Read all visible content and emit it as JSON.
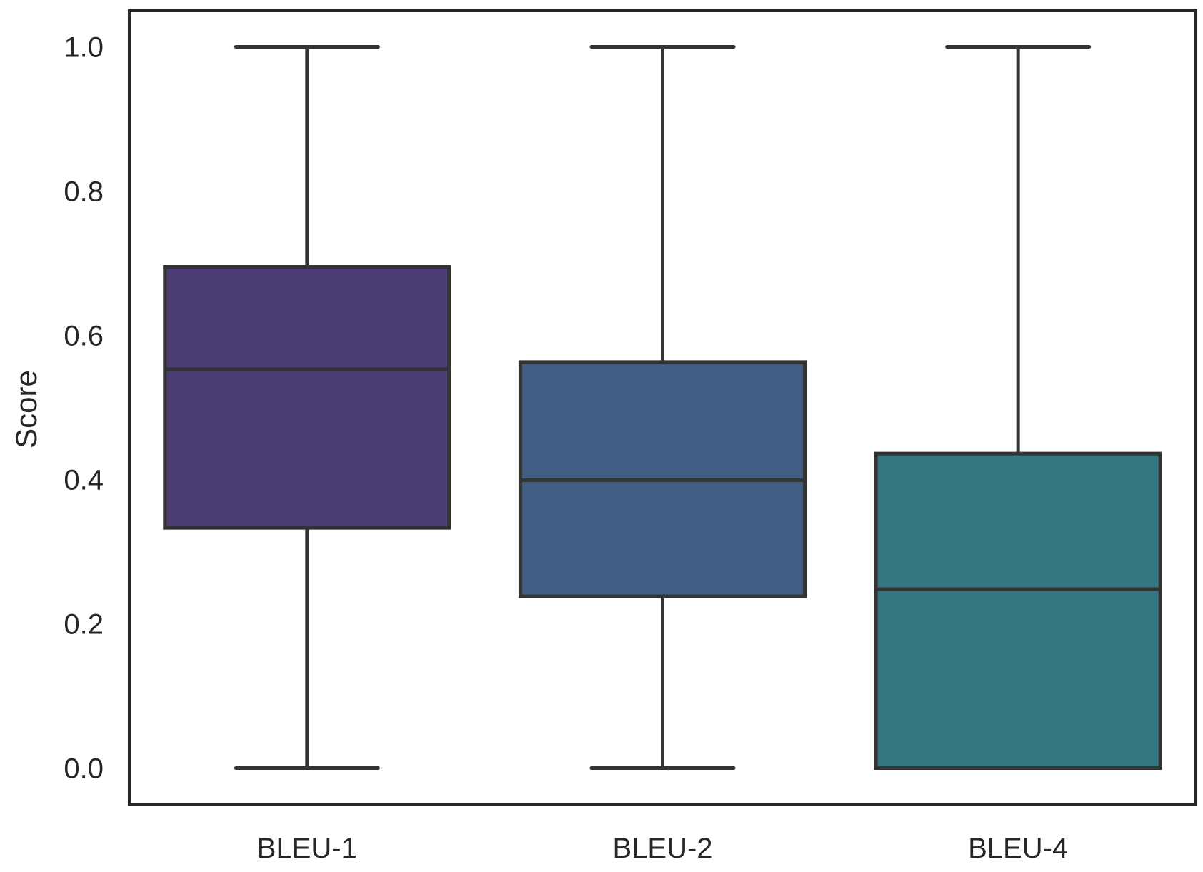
{
  "chart_data": {
    "type": "box",
    "ylabel": "Score",
    "xlabel": "",
    "ylim": [
      -0.05,
      1.05
    ],
    "yticks": [
      0.0,
      0.2,
      0.4,
      0.6,
      0.8,
      1.0
    ],
    "ytick_labels": [
      "0.0",
      "0.2",
      "0.4",
      "0.6",
      "0.8",
      "1.0"
    ],
    "grid": false,
    "categories": [
      "BLEU-1",
      "BLEU-2",
      "BLEU-4"
    ],
    "boxes": [
      {
        "name": "BLEU-1",
        "whisker_low": 0.0,
        "q1": 0.333,
        "median": 0.553,
        "q3": 0.695,
        "whisker_high": 1.0,
        "color": "#4a3b73"
      },
      {
        "name": "BLEU-2",
        "whisker_low": 0.0,
        "q1": 0.238,
        "median": 0.399,
        "q3": 0.563,
        "whisker_high": 1.0,
        "color": "#415f84"
      },
      {
        "name": "BLEU-4",
        "whisker_low": 0.0,
        "q1": 0.0,
        "median": 0.248,
        "q3": 0.436,
        "whisker_high": 1.0,
        "color": "#347780"
      }
    ]
  }
}
